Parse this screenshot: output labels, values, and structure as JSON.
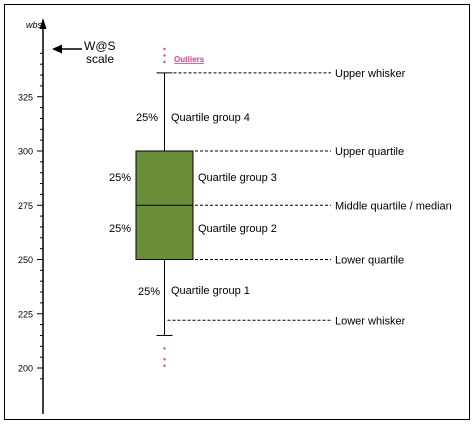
{
  "frame_color": "#000000",
  "box_color": "#6b8e3a",
  "outlier_color": "#e0407a",
  "axis": {
    "unit_label": "wbs",
    "scale_label_line1": "W@S",
    "scale_label_line2": "scale",
    "ticks": [
      "325",
      "300",
      "275",
      "250",
      "225",
      "200"
    ]
  },
  "boxplot": {
    "lower_whisker": 215,
    "q1": 250,
    "median": 275,
    "q3": 300,
    "upper_whisker": 336,
    "outliers_high": [
      347,
      344,
      341
    ],
    "outliers_low": [
      209,
      204,
      201
    ]
  },
  "labels": {
    "outliers": "Outliers",
    "upper_whisker": "Upper whisker",
    "upper_quartile": "Upper quartile",
    "median": "Middle quartile / median",
    "lower_quartile": "Lower quartile",
    "lower_whisker": "Lower whisker",
    "group4": "Quartile group 4",
    "group3": "Quartile group 3",
    "group2": "Quartile group 2",
    "group1": "Quartile group 1",
    "pct_group4": "25%",
    "pct_group3": "25%",
    "pct_group2": "25%",
    "pct_group1": "25%"
  }
}
